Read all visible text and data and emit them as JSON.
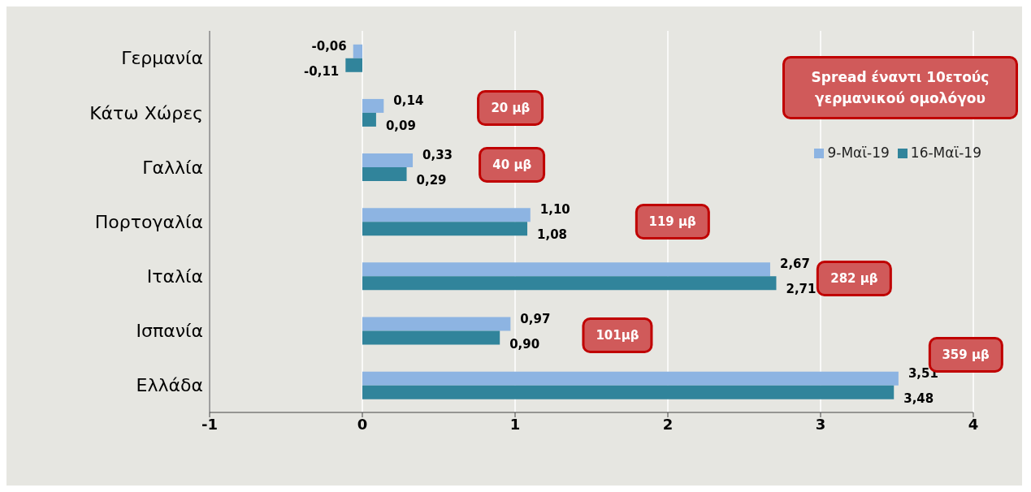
{
  "chart_data": {
    "type": "bar",
    "orientation": "horizontal",
    "categories": [
      "Γερμανία",
      "Κάτω Χώρες",
      "Γαλλία",
      "Πορτογαλία",
      "Ιταλία",
      "Ισπανία",
      "Ελλάδα"
    ],
    "series": [
      {
        "name": "9-Μαϊ-19",
        "color": "#8db4e2",
        "values": [
          -0.06,
          0.14,
          0.33,
          1.1,
          2.67,
          0.97,
          3.51
        ],
        "value_labels": [
          "-0,06",
          "0,14",
          "0,33",
          "1,10",
          "2,67",
          "0,97",
          "3,51"
        ]
      },
      {
        "name": "16-Μαϊ-19",
        "color": "#31849b",
        "values": [
          -0.11,
          0.09,
          0.29,
          1.08,
          2.71,
          0.9,
          3.48
        ],
        "value_labels": [
          "-0,11",
          "0,09",
          "0,29",
          "1,08",
          "2,71",
          "0,90",
          "3,48"
        ]
      }
    ],
    "xlim": [
      -1,
      4
    ],
    "xticks": [
      -1,
      0,
      1,
      2,
      3,
      4
    ],
    "grid": "x",
    "legend": "top right",
    "annotations": [
      "Spread έναντι 10ετούς γερμανικού ομολόγου",
      "20 μβ",
      "40 μβ",
      "119 μβ",
      "282 μβ",
      "101μβ",
      "359 μβ"
    ]
  }
}
